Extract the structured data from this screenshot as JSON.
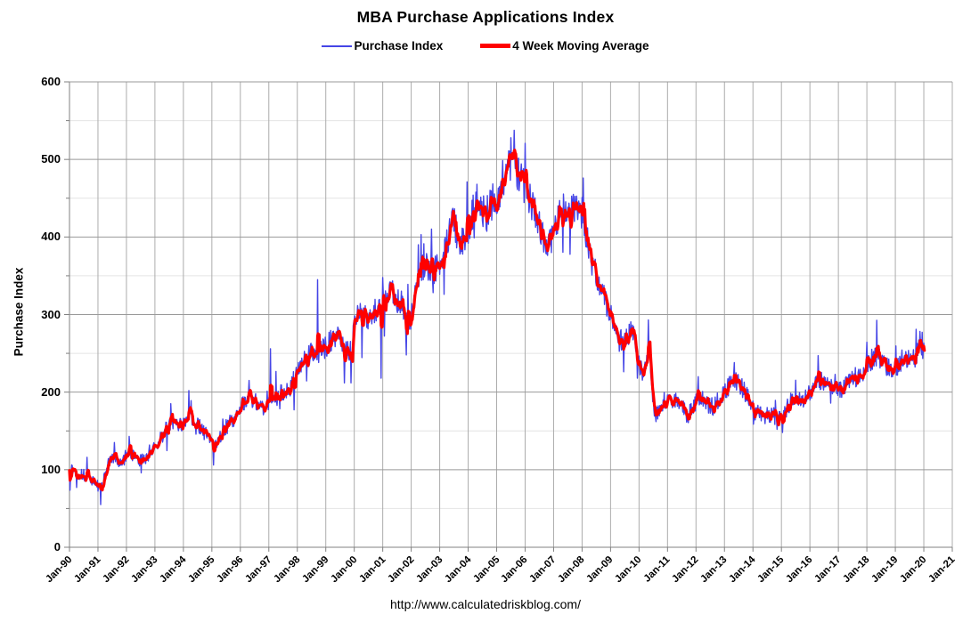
{
  "header": {
    "title": "MBA Purchase Applications Index"
  },
  "legend": {
    "items": [
      {
        "label": "Purchase Index",
        "color": "#4545E6",
        "style": "thin-line"
      },
      {
        "label": "4 Week Moving Average",
        "color": "#FF0000",
        "style": "thick-line"
      }
    ]
  },
  "footer": {
    "url": "http://www.calculatedriskblog.com/"
  },
  "colors": {
    "purchase_index": "#4545E6",
    "moving_average": "#FF0000",
    "grid_major": "#999999",
    "grid_minor": "#E4E4E4",
    "grid_vertical": "#ACACAC",
    "axis": "#808080",
    "text": "#000000",
    "background": "#FFFFFF"
  },
  "chart_data": {
    "type": "line",
    "title": "MBA Purchase Applications Index",
    "xlabel": "",
    "ylabel": "Purchase Index",
    "x_tick_labels": [
      "Jan-90",
      "Jan-91",
      "Jan-92",
      "Jan-93",
      "Jan-94",
      "Jan-95",
      "Jan-96",
      "Jan-97",
      "Jan-98",
      "Jan-99",
      "Jan-00",
      "Jan-01",
      "Jan-02",
      "Jan-03",
      "Jan-04",
      "Jan-05",
      "Jan-06",
      "Jan-07",
      "Jan-08",
      "Jan-09",
      "Jan-10",
      "Jan-11",
      "Jan-12",
      "Jan-13",
      "Jan-14",
      "Jan-15",
      "Jan-16",
      "Jan-17",
      "Jan-18",
      "Jan-19",
      "Jan-20",
      "Jan-21"
    ],
    "x_range_years": [
      1990,
      2021
    ],
    "ylim": [
      0,
      600
    ],
    "y_tick_labels": [
      "0",
      "100",
      "200",
      "300",
      "400",
      "500",
      "600"
    ],
    "y_major_step": 100,
    "y_minor_step": 50,
    "grid": true,
    "legend_position": "top-center",
    "data_start_year": 1990.0,
    "data_end_year": 2020.02,
    "series": [
      {
        "name": "Purchase Index",
        "color": "#4545E6",
        "stroke_width": 1.4,
        "derivation": "weekly index = 4-week moving-average anchors plus weekly fluctuation (noise params below); notable weekly extremes listed in blue_spikes_year_value"
      },
      {
        "name": "4 Week Moving Average",
        "color": "#FF0000",
        "stroke_width": 3.2,
        "anchors_year_value": [
          [
            1990.0,
            98
          ],
          [
            1990.1,
            101
          ],
          [
            1990.25,
            97
          ],
          [
            1990.4,
            94
          ],
          [
            1990.55,
            92
          ],
          [
            1990.7,
            89
          ],
          [
            1990.85,
            84
          ],
          [
            1991.0,
            79
          ],
          [
            1991.08,
            76
          ],
          [
            1991.17,
            81
          ],
          [
            1991.25,
            92
          ],
          [
            1991.33,
            103
          ],
          [
            1991.42,
            111
          ],
          [
            1991.5,
            116
          ],
          [
            1991.6,
            114
          ],
          [
            1991.7,
            112
          ],
          [
            1991.8,
            110
          ],
          [
            1991.9,
            112
          ],
          [
            1992.0,
            121
          ],
          [
            1992.1,
            126
          ],
          [
            1992.2,
            119
          ],
          [
            1992.3,
            114
          ],
          [
            1992.45,
            111
          ],
          [
            1992.6,
            113
          ],
          [
            1992.7,
            116
          ],
          [
            1992.8,
            120
          ],
          [
            1992.9,
            123
          ],
          [
            1993.0,
            128
          ],
          [
            1993.1,
            133
          ],
          [
            1993.2,
            140
          ],
          [
            1993.3,
            147
          ],
          [
            1993.45,
            154
          ],
          [
            1993.55,
            160
          ],
          [
            1993.65,
            162
          ],
          [
            1993.75,
            157
          ],
          [
            1993.85,
            155
          ],
          [
            1993.95,
            159
          ],
          [
            1994.05,
            162
          ],
          [
            1994.15,
            166
          ],
          [
            1994.25,
            168
          ],
          [
            1994.35,
            164
          ],
          [
            1994.5,
            158
          ],
          [
            1994.65,
            152
          ],
          [
            1994.8,
            145
          ],
          [
            1994.9,
            138
          ],
          [
            1995.0,
            134
          ],
          [
            1995.1,
            132
          ],
          [
            1995.2,
            137
          ],
          [
            1995.3,
            144
          ],
          [
            1995.45,
            152
          ],
          [
            1995.6,
            159
          ],
          [
            1995.75,
            165
          ],
          [
            1995.9,
            172
          ],
          [
            1996.0,
            179
          ],
          [
            1996.15,
            188
          ],
          [
            1996.3,
            192
          ],
          [
            1996.45,
            189
          ],
          [
            1996.6,
            185
          ],
          [
            1996.75,
            181
          ],
          [
            1996.9,
            182
          ],
          [
            1997.0,
            184
          ],
          [
            1997.15,
            190
          ],
          [
            1997.3,
            195
          ],
          [
            1997.45,
            199
          ],
          [
            1997.6,
            203
          ],
          [
            1997.75,
            207
          ],
          [
            1997.9,
            216
          ],
          [
            1998.0,
            228
          ],
          [
            1998.1,
            235
          ],
          [
            1998.2,
            240
          ],
          [
            1998.3,
            244
          ],
          [
            1998.45,
            250
          ],
          [
            1998.6,
            247
          ],
          [
            1998.75,
            252
          ],
          [
            1998.85,
            255
          ],
          [
            1998.95,
            257
          ],
          [
            1999.05,
            261
          ],
          [
            1999.2,
            268
          ],
          [
            1999.35,
            272
          ],
          [
            1999.5,
            266
          ],
          [
            1999.65,
            260
          ],
          [
            1999.8,
            250
          ],
          [
            1999.9,
            254
          ],
          [
            2000.0,
            282
          ],
          [
            2000.1,
            298
          ],
          [
            2000.2,
            305
          ],
          [
            2000.35,
            299
          ],
          [
            2000.5,
            296
          ],
          [
            2000.65,
            303
          ],
          [
            2000.8,
            308
          ],
          [
            2000.9,
            311
          ],
          [
            2001.0,
            316
          ],
          [
            2001.15,
            325
          ],
          [
            2001.3,
            329
          ],
          [
            2001.45,
            321
          ],
          [
            2001.6,
            317
          ],
          [
            2001.7,
            311
          ],
          [
            2001.8,
            290
          ],
          [
            2001.9,
            285
          ],
          [
            2002.0,
            297
          ],
          [
            2002.1,
            318
          ],
          [
            2002.2,
            341
          ],
          [
            2002.3,
            353
          ],
          [
            2002.4,
            359
          ],
          [
            2002.5,
            354
          ],
          [
            2002.6,
            358
          ],
          [
            2002.7,
            362
          ],
          [
            2002.8,
            357
          ],
          [
            2002.9,
            361
          ],
          [
            2003.0,
            368
          ],
          [
            2003.1,
            375
          ],
          [
            2003.2,
            384
          ],
          [
            2003.3,
            399
          ],
          [
            2003.4,
            416
          ],
          [
            2003.5,
            424
          ],
          [
            2003.6,
            404
          ],
          [
            2003.7,
            389
          ],
          [
            2003.8,
            394
          ],
          [
            2003.9,
            401
          ],
          [
            2004.0,
            409
          ],
          [
            2004.1,
            423
          ],
          [
            2004.2,
            438
          ],
          [
            2004.3,
            448
          ],
          [
            2004.4,
            442
          ],
          [
            2004.5,
            434
          ],
          [
            2004.6,
            429
          ],
          [
            2004.7,
            436
          ],
          [
            2004.8,
            441
          ],
          [
            2004.9,
            447
          ],
          [
            2005.0,
            451
          ],
          [
            2005.1,
            456
          ],
          [
            2005.2,
            463
          ],
          [
            2005.3,
            472
          ],
          [
            2005.4,
            484
          ],
          [
            2005.5,
            497
          ],
          [
            2005.57,
            501
          ],
          [
            2005.65,
            490
          ],
          [
            2005.75,
            483
          ],
          [
            2005.85,
            474
          ],
          [
            2005.95,
            466
          ],
          [
            2006.05,
            462
          ],
          [
            2006.15,
            452
          ],
          [
            2006.3,
            437
          ],
          [
            2006.45,
            420
          ],
          [
            2006.6,
            404
          ],
          [
            2006.75,
            392
          ],
          [
            2006.85,
            388
          ],
          [
            2006.95,
            402
          ],
          [
            2007.05,
            409
          ],
          [
            2007.15,
            424
          ],
          [
            2007.3,
            434
          ],
          [
            2007.45,
            442
          ],
          [
            2007.6,
            437
          ],
          [
            2007.7,
            444
          ],
          [
            2007.8,
            436
          ],
          [
            2007.9,
            427
          ],
          [
            2008.0,
            434
          ],
          [
            2008.08,
            421
          ],
          [
            2008.17,
            399
          ],
          [
            2008.25,
            379
          ],
          [
            2008.35,
            366
          ],
          [
            2008.5,
            349
          ],
          [
            2008.65,
            333
          ],
          [
            2008.8,
            318
          ],
          [
            2008.9,
            309
          ],
          [
            2009.0,
            303
          ],
          [
            2009.1,
            291
          ],
          [
            2009.2,
            277
          ],
          [
            2009.3,
            264
          ],
          [
            2009.4,
            270
          ],
          [
            2009.5,
            276
          ],
          [
            2009.6,
            271
          ],
          [
            2009.7,
            279
          ],
          [
            2009.8,
            281
          ],
          [
            2009.87,
            269
          ],
          [
            2009.95,
            245
          ],
          [
            2010.05,
            229
          ],
          [
            2010.15,
            222
          ],
          [
            2010.25,
            231
          ],
          [
            2010.33,
            255
          ],
          [
            2010.4,
            236
          ],
          [
            2010.48,
            193
          ],
          [
            2010.56,
            173
          ],
          [
            2010.7,
            177
          ],
          [
            2010.8,
            183
          ],
          [
            2010.9,
            192
          ],
          [
            2011.0,
            185
          ],
          [
            2011.1,
            187
          ],
          [
            2011.2,
            193
          ],
          [
            2011.35,
            189
          ],
          [
            2011.5,
            184
          ],
          [
            2011.6,
            177
          ],
          [
            2011.7,
            170
          ],
          [
            2011.8,
            174
          ],
          [
            2011.9,
            182
          ],
          [
            2012.0,
            188
          ],
          [
            2012.15,
            193
          ],
          [
            2012.3,
            190
          ],
          [
            2012.45,
            184
          ],
          [
            2012.6,
            181
          ],
          [
            2012.75,
            188
          ],
          [
            2012.85,
            196
          ],
          [
            2012.95,
            199
          ],
          [
            2013.05,
            203
          ],
          [
            2013.2,
            210
          ],
          [
            2013.35,
            217
          ],
          [
            2013.5,
            211
          ],
          [
            2013.65,
            204
          ],
          [
            2013.8,
            196
          ],
          [
            2013.9,
            186
          ],
          [
            2014.0,
            178
          ],
          [
            2014.1,
            173
          ],
          [
            2014.25,
            175
          ],
          [
            2014.4,
            169
          ],
          [
            2014.55,
            172
          ],
          [
            2014.7,
            170
          ],
          [
            2014.85,
            166
          ],
          [
            2015.0,
            165
          ],
          [
            2015.1,
            171
          ],
          [
            2015.2,
            180
          ],
          [
            2015.35,
            189
          ],
          [
            2015.5,
            194
          ],
          [
            2015.65,
            190
          ],
          [
            2015.8,
            192
          ],
          [
            2015.95,
            197
          ],
          [
            2016.05,
            195
          ],
          [
            2016.15,
            206
          ],
          [
            2016.3,
            212
          ],
          [
            2016.45,
            214
          ],
          [
            2016.6,
            211
          ],
          [
            2016.75,
            209
          ],
          [
            2016.9,
            211
          ],
          [
            2017.0,
            207
          ],
          [
            2017.1,
            200
          ],
          [
            2017.25,
            209
          ],
          [
            2017.4,
            216
          ],
          [
            2017.55,
            220
          ],
          [
            2017.7,
            217
          ],
          [
            2017.85,
            222
          ],
          [
            2017.95,
            230
          ],
          [
            2018.05,
            238
          ],
          [
            2018.2,
            243
          ],
          [
            2018.3,
            247
          ],
          [
            2018.45,
            242
          ],
          [
            2018.6,
            237
          ],
          [
            2018.75,
            231
          ],
          [
            2018.85,
            226
          ],
          [
            2018.95,
            228
          ],
          [
            2019.05,
            233
          ],
          [
            2019.2,
            240
          ],
          [
            2019.3,
            248
          ],
          [
            2019.45,
            243
          ],
          [
            2019.6,
            247
          ],
          [
            2019.7,
            241
          ],
          [
            2019.8,
            255
          ],
          [
            2019.87,
            266
          ],
          [
            2019.93,
            249
          ],
          [
            2020.0,
            257
          ]
        ]
      }
    ],
    "blue_spikes_year_value": [
      [
        1990.62,
        116
      ],
      [
        1991.1,
        55
      ],
      [
        1992.1,
        143
      ],
      [
        1993.55,
        185
      ],
      [
        1994.2,
        202
      ],
      [
        1995.05,
        106
      ],
      [
        1996.3,
        215
      ],
      [
        1997.05,
        256
      ],
      [
        1998.72,
        345
      ],
      [
        2000.95,
        218
      ],
      [
        2001.25,
        342
      ],
      [
        2002.25,
        390
      ],
      [
        2003.45,
        435
      ],
      [
        2004.3,
        468
      ],
      [
        2005.42,
        511
      ],
      [
        2005.5,
        528
      ],
      [
        2008.04,
        476
      ],
      [
        2009.95,
        218
      ],
      [
        2010.32,
        293
      ],
      [
        2010.6,
        162
      ],
      [
        2013.35,
        238
      ],
      [
        2014.85,
        152
      ],
      [
        2016.28,
        247
      ],
      [
        2019.95,
        277
      ]
    ],
    "noise": {
      "seed": 13,
      "weekly_step_years": 0.019231,
      "amp_base": 4,
      "amp_frac": 0.04,
      "spike_prob": 0.05,
      "spike_amp_frac": 0.1
    }
  }
}
